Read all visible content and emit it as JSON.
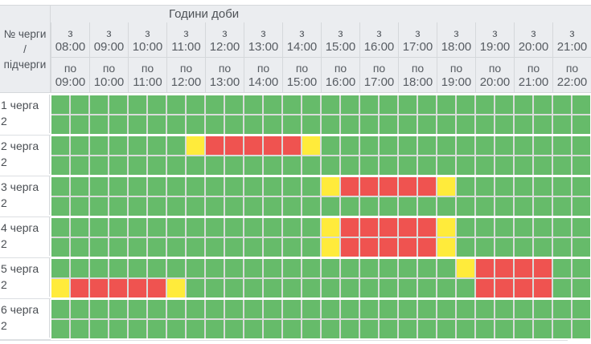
{
  "table": {
    "corner_header": {
      "line1": "№ черги",
      "line2": "/",
      "line3": "підчерги"
    },
    "title": "Години доби",
    "from_prefix": "з",
    "to_prefix": "по",
    "hours": [
      {
        "from": "08:00",
        "to": "09:00"
      },
      {
        "from": "09:00",
        "to": "10:00"
      },
      {
        "from": "10:00",
        "to": "11:00"
      },
      {
        "from": "11:00",
        "to": "12:00"
      },
      {
        "from": "12:00",
        "to": "13:00"
      },
      {
        "from": "13:00",
        "to": "14:00"
      },
      {
        "from": "14:00",
        "to": "15:00"
      },
      {
        "from": "15:00",
        "to": "16:00"
      },
      {
        "from": "16:00",
        "to": "17:00"
      },
      {
        "from": "17:00",
        "to": "18:00"
      },
      {
        "from": "18:00",
        "to": "19:00"
      },
      {
        "from": "19:00",
        "to": "20:00"
      },
      {
        "from": "20:00",
        "to": "21:00"
      },
      {
        "from": "21:00",
        "to": "22:00"
      }
    ],
    "slot_minutes": 30,
    "first_slot_time": "08:00",
    "status_colors": {
      "G": "#66bb6a",
      "Y": "#ffeb3b",
      "R": "#ef5350"
    },
    "queues": [
      {
        "label": "1 черга",
        "sub_label": "2",
        "rows": [
          "GGGGGGGGGGGGGGGGGGGGGGGGGGGG",
          "GGGGGGGGGGGGGGGGGGGGGGGGGGGG"
        ]
      },
      {
        "label": "2 черга",
        "sub_label": "2",
        "rows": [
          "GGGGGGGYRRRRRYGGGGGGGGGGGGGG",
          "GGGGGGGGGGGGGGGGGGGGGGGGGGGG"
        ]
      },
      {
        "label": "3 черга",
        "sub_label": "2",
        "rows": [
          "GGGGGGGGGGGGGGYRRRRRYGGGGGGG",
          "GGGGGGGGGGGGGGGGGGGGGGGGGGGG"
        ]
      },
      {
        "label": "4 черга",
        "sub_label": "2",
        "rows": [
          "GGGGGGGGGGGGGGYRRRRRYGGGGGGG",
          "GGGGGGGGGGGGGGYRRRRRYGGGGGGG"
        ]
      },
      {
        "label": "5 черга",
        "sub_label": "2",
        "rows": [
          "GGGGGGGGGGGGGGGGGGGGGYRRRRGG",
          "YRRRRRYGGGGGGGGGGGGGGGRRRRGG"
        ]
      },
      {
        "label": "6 черга",
        "sub_label": "2",
        "rows": [
          "GGGGGGGGGGGGGGGGGGGGGGGGGGGG",
          "GGGGGGGGGGGGGGGGGGGGGGGGGGGG"
        ]
      }
    ]
  }
}
